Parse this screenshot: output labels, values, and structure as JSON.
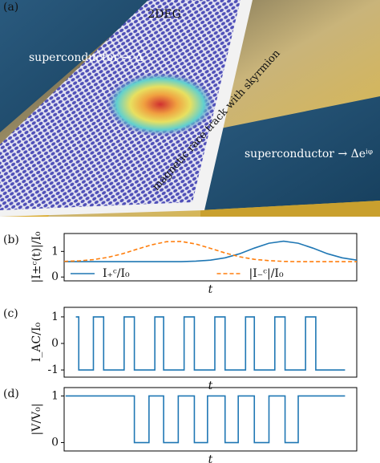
{
  "panel_a": {
    "label": "(a)",
    "top_label": "2DEG",
    "left_label": "superconductor → Δ",
    "track_label": "magnetic race track with skyrmion",
    "right_label": "superconductor → Δeⁱᵠ"
  },
  "chart_data": [
    {
      "type": "line",
      "label": "(b)",
      "ylabel": "|I±ᶜ(t)|/I₀",
      "xlabel": "t",
      "x": [
        0,
        0.05,
        0.1,
        0.15,
        0.2,
        0.25,
        0.3,
        0.35,
        0.4,
        0.45,
        0.5,
        0.55,
        0.6,
        0.65,
        0.7,
        0.75,
        0.8,
        0.85,
        0.9,
        0.95,
        1.0
      ],
      "series": [
        {
          "name": "I₊ᶜ/I₀",
          "color": "#1f77b4",
          "linestyle": "solid",
          "values": [
            0.6,
            0.6,
            0.6,
            0.6,
            0.6,
            0.6,
            0.6,
            0.6,
            0.6,
            0.62,
            0.66,
            0.75,
            0.91,
            1.13,
            1.32,
            1.4,
            1.32,
            1.13,
            0.91,
            0.75,
            0.66
          ]
        },
        {
          "name": "|I₋ᶜ|/I₀",
          "color": "#ff7f0e",
          "linestyle": "dashed",
          "values": [
            0.61,
            0.63,
            0.68,
            0.77,
            0.91,
            1.09,
            1.26,
            1.38,
            1.39,
            1.29,
            1.12,
            0.94,
            0.79,
            0.69,
            0.64,
            0.61,
            0.6,
            0.6,
            0.6,
            0.6,
            0.6
          ]
        }
      ],
      "xlim": [
        0,
        1
      ],
      "ylim": [
        -0.15,
        1.7
      ],
      "yticks": [
        0,
        1
      ],
      "legend": "lower center"
    },
    {
      "type": "line",
      "label": "(c)",
      "ylabel": "I_AC/I₀",
      "xlabel": "t",
      "x": [
        4,
        5,
        5,
        10,
        10,
        13.5,
        13.5,
        20.5,
        20.5,
        24,
        24,
        31,
        31,
        34,
        34,
        41,
        41,
        44.5,
        44.5,
        51.5,
        51.5,
        55,
        55,
        62,
        62,
        65,
        65,
        72,
        72,
        75.5,
        75.5,
        82.5,
        82.5,
        86,
        86,
        96
      ],
      "series": [
        {
          "color": "#1f77b4",
          "linestyle": "solid",
          "values": [
            1,
            1,
            -1,
            -1,
            1,
            1,
            -1,
            -1,
            1,
            1,
            -1,
            -1,
            1,
            1,
            -1,
            -1,
            1,
            1,
            -1,
            -1,
            1,
            1,
            -1,
            -1,
            1,
            1,
            -1,
            -1,
            1,
            1,
            -1,
            -1,
            1,
            1,
            -1,
            -1
          ]
        }
      ],
      "xlim": [
        0,
        100
      ],
      "ylim": [
        -1.27,
        1.36
      ],
      "yticks": [
        -1,
        0,
        1
      ]
    },
    {
      "type": "line",
      "label": "(d)",
      "ylabel": "|V/V₀|",
      "xlabel": "t",
      "x": [
        0.5,
        24,
        24,
        29,
        29,
        34,
        34,
        39,
        39,
        44.5,
        44.5,
        49,
        49,
        55,
        55,
        59.5,
        59.5,
        65,
        65,
        70,
        70,
        75.5,
        75.5,
        80,
        80,
        96
      ],
      "series": [
        {
          "color": "#1f77b4",
          "linestyle": "solid",
          "values": [
            1,
            1,
            0,
            0,
            1,
            1,
            0,
            0,
            1,
            1,
            0,
            0,
            1,
            1,
            0,
            0,
            1,
            1,
            0,
            0,
            1,
            1,
            0,
            0,
            1,
            1
          ]
        }
      ],
      "xlim": [
        0,
        100
      ],
      "ylim": [
        -0.18,
        1.18
      ],
      "yticks": [
        0,
        1
      ]
    }
  ]
}
